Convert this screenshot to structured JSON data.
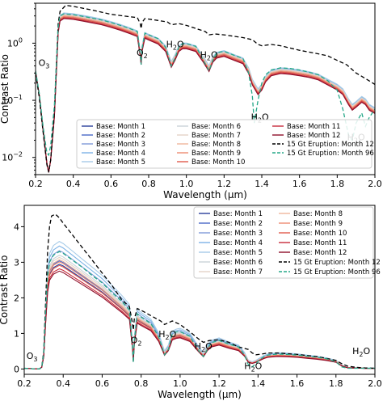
{
  "chart_data": [
    {
      "type": "line",
      "x_scale": "linear",
      "y_scale": "log",
      "xlim": [
        0.2,
        2.0
      ],
      "ylim": [
        0.005,
        5
      ],
      "xlabel": "Wavelength (μm)",
      "ylabel": "Contrast Ratio",
      "x_ticks": [
        {
          "v": 0.2,
          "label": "0.2"
        },
        {
          "v": 0.4,
          "label": "0.4"
        },
        {
          "v": 0.6,
          "label": "0.6"
        },
        {
          "v": 0.8,
          "label": "0.8"
        },
        {
          "v": 1.0,
          "label": "1.0"
        },
        {
          "v": 1.2,
          "label": "1.2"
        },
        {
          "v": 1.4,
          "label": "1.4"
        },
        {
          "v": 1.6,
          "label": "1.6"
        },
        {
          "v": 1.8,
          "label": "1.8"
        },
        {
          "v": 2.0,
          "label": "2.0"
        }
      ],
      "y_ticks": [
        {
          "v": 0.01,
          "label": "10",
          "sup": "−2"
        },
        {
          "v": 0.1,
          "label": "10",
          "sup": "−1"
        },
        {
          "v": 1,
          "label": "10",
          "sup": "0"
        }
      ],
      "legend_position": "lower-center",
      "legend_columns": 3,
      "annotations": [
        {
          "text": "O",
          "sub": "3",
          "x": 0.245,
          "y": 0.4
        },
        {
          "text": "O",
          "sub": "2",
          "x": 0.765,
          "y": 0.6
        },
        {
          "text": "H",
          "sub": "2",
          "tail": "O",
          "x": 0.94,
          "y": 0.85
        },
        {
          "text": "H",
          "sub": "2",
          "tail": "O",
          "x": 1.12,
          "y": 0.55
        },
        {
          "text": "H",
          "sub": "2",
          "tail": "O",
          "x": 1.39,
          "y": 0.045
        },
        {
          "text": "H",
          "sub": "2",
          "tail": "O",
          "x": 1.9,
          "y": 0.02
        }
      ],
      "base_curve": {
        "x": [
          0.2,
          0.22,
          0.24,
          0.26,
          0.27,
          0.28,
          0.3,
          0.31,
          0.32,
          0.33,
          0.35,
          0.4,
          0.45,
          0.5,
          0.55,
          0.6,
          0.65,
          0.7,
          0.74,
          0.755,
          0.76,
          0.765,
          0.78,
          0.8,
          0.85,
          0.89,
          0.92,
          0.94,
          0.96,
          0.98,
          1.0,
          1.05,
          1.09,
          1.12,
          1.14,
          1.16,
          1.2,
          1.25,
          1.3,
          1.33,
          1.35,
          1.38,
          1.4,
          1.42,
          1.45,
          1.5,
          1.55,
          1.6,
          1.65,
          1.7,
          1.75,
          1.8,
          1.83,
          1.86,
          1.88,
          1.9,
          1.93,
          1.95,
          1.97,
          2.0
        ],
        "y": [
          0.32,
          0.12,
          0.03,
          0.008,
          0.0055,
          0.009,
          0.06,
          0.35,
          1.8,
          2.9,
          3.2,
          3.1,
          2.9,
          2.7,
          2.5,
          2.25,
          2.0,
          1.75,
          1.55,
          0.7,
          0.5,
          0.85,
          1.45,
          1.35,
          1.15,
          0.85,
          0.45,
          0.6,
          0.85,
          0.95,
          0.95,
          0.85,
          0.55,
          0.38,
          0.55,
          0.65,
          0.7,
          0.6,
          0.52,
          0.35,
          0.22,
          0.15,
          0.18,
          0.25,
          0.32,
          0.35,
          0.34,
          0.32,
          0.3,
          0.27,
          0.22,
          0.18,
          0.15,
          0.1,
          0.08,
          0.09,
          0.11,
          0.1,
          0.08,
          0.07
        ]
      },
      "series": [
        {
          "name": "Base: Month 1",
          "color": "#2a3f9b",
          "scale": 0.9,
          "dash": ""
        },
        {
          "name": "Base: Month 2",
          "color": "#4a68c8",
          "scale": 0.93,
          "dash": ""
        },
        {
          "name": "Base: Month 3",
          "color": "#7f9ad8",
          "scale": 0.96,
          "dash": ""
        },
        {
          "name": "Base: Month 4",
          "color": "#7db2e6",
          "scale": 1.03,
          "dash": ""
        },
        {
          "name": "Base: Month 5",
          "color": "#a6cbe8",
          "scale": 1.06,
          "dash": ""
        },
        {
          "name": "Base: Month 6",
          "color": "#c9d3d8",
          "scale": 1.0,
          "dash": ""
        },
        {
          "name": "Base: Month 7",
          "color": "#e3d3c8",
          "scale": 0.98,
          "dash": ""
        },
        {
          "name": "Base: Month 8",
          "color": "#f0b69c",
          "scale": 0.95,
          "dash": ""
        },
        {
          "name": "Base: Month 9",
          "color": "#ee8c72",
          "scale": 0.92,
          "dash": ""
        },
        {
          "name": "Base: Month 10",
          "color": "#e05a4c",
          "scale": 0.89,
          "dash": ""
        },
        {
          "name": "Base: Month 11",
          "color": "#c82a3a",
          "scale": 0.86,
          "dash": ""
        },
        {
          "name": "Base: Month 12",
          "color": "#8e0f2a",
          "scale": 0.84,
          "dash": ""
        },
        {
          "name": "15 Gt Eruption: Month 12",
          "color": "#000000",
          "dash": "5,3",
          "x": [
            0.2,
            0.22,
            0.24,
            0.26,
            0.27,
            0.28,
            0.3,
            0.31,
            0.32,
            0.33,
            0.36,
            0.4,
            0.5,
            0.6,
            0.7,
            0.74,
            0.755,
            0.76,
            0.765,
            0.78,
            0.85,
            0.9,
            0.92,
            0.94,
            0.96,
            1.0,
            1.1,
            1.12,
            1.15,
            1.2,
            1.3,
            1.35,
            1.38,
            1.4,
            1.45,
            1.5,
            1.6,
            1.7,
            1.75,
            1.8,
            1.85,
            1.9,
            1.95,
            2.0
          ],
          "y": [
            0.3,
            0.11,
            0.028,
            0.0075,
            0.0055,
            0.009,
            0.065,
            0.4,
            2.2,
            3.6,
            4.6,
            4.4,
            3.8,
            3.2,
            2.9,
            2.8,
            2.2,
            1.8,
            2.3,
            2.7,
            2.5,
            2.35,
            2.1,
            2.15,
            2.2,
            2.05,
            1.6,
            1.4,
            1.45,
            1.4,
            1.25,
            1.15,
            0.95,
            0.9,
            0.95,
            0.9,
            0.75,
            0.65,
            0.6,
            0.5,
            0.42,
            0.3,
            0.24,
            0.19
          ]
        },
        {
          "name": "15 Gt Eruption: Month 96",
          "color": "#26a889",
          "dash": "5,3",
          "x": [
            0.2,
            0.22,
            0.24,
            0.26,
            0.27,
            0.28,
            0.3,
            0.31,
            0.32,
            0.33,
            0.35,
            0.4,
            0.45,
            0.5,
            0.55,
            0.6,
            0.65,
            0.7,
            0.74,
            0.755,
            0.76,
            0.765,
            0.78,
            0.8,
            0.85,
            0.89,
            0.92,
            0.94,
            0.96,
            0.98,
            1.0,
            1.05,
            1.09,
            1.12,
            1.14,
            1.16,
            1.2,
            1.25,
            1.3,
            1.33,
            1.35,
            1.36,
            1.38,
            1.4,
            1.42,
            1.45,
            1.5,
            1.55,
            1.6,
            1.65,
            1.7,
            1.75,
            1.8,
            1.83,
            1.86,
            1.88,
            1.9,
            1.93,
            1.95,
            1.97,
            2.0
          ],
          "y": [
            0.33,
            0.13,
            0.035,
            0.012,
            0.011,
            0.016,
            0.08,
            0.42,
            1.9,
            3.0,
            3.25,
            3.15,
            2.95,
            2.75,
            2.55,
            2.3,
            2.05,
            1.8,
            1.6,
            0.65,
            0.42,
            0.8,
            1.5,
            1.4,
            1.2,
            0.85,
            0.4,
            0.55,
            0.85,
            0.98,
            0.98,
            0.88,
            0.5,
            0.33,
            0.5,
            0.68,
            0.72,
            0.62,
            0.54,
            0.3,
            0.12,
            0.04,
            0.1,
            0.2,
            0.28,
            0.34,
            0.37,
            0.36,
            0.34,
            0.31,
            0.28,
            0.22,
            0.15,
            0.07,
            0.025,
            0.02,
            0.04,
            0.06,
            0.035,
            0.05,
            0.07
          ]
        }
      ]
    },
    {
      "type": "line",
      "x_scale": "linear",
      "y_scale": "linear",
      "xlim": [
        0.2,
        2.0
      ],
      "ylim": [
        -0.15,
        4.6
      ],
      "xlabel": "Wavelength (μm)",
      "ylabel": "Contrast Ratio",
      "x_ticks": [
        {
          "v": 0.2,
          "label": "0.2"
        },
        {
          "v": 0.4,
          "label": "0.4"
        },
        {
          "v": 0.6,
          "label": "0.6"
        },
        {
          "v": 0.8,
          "label": "0.8"
        },
        {
          "v": 1.0,
          "label": "1.0"
        },
        {
          "v": 1.2,
          "label": "1.2"
        },
        {
          "v": 1.4,
          "label": "1.4"
        },
        {
          "v": 1.6,
          "label": "1.6"
        },
        {
          "v": 1.8,
          "label": "1.8"
        },
        {
          "v": 2.0,
          "label": "2.0"
        }
      ],
      "y_ticks": [
        {
          "v": 0,
          "label": "0"
        },
        {
          "v": 1,
          "label": "1"
        },
        {
          "v": 2,
          "label": "2"
        },
        {
          "v": 3,
          "label": "3"
        },
        {
          "v": 4,
          "label": "4"
        }
      ],
      "legend_position": "upper-right",
      "legend_columns": 2,
      "annotations": [
        {
          "text": "O",
          "sub": "3",
          "x": 0.24,
          "y": 0.28
        },
        {
          "text": "O",
          "sub": "2",
          "x": 0.775,
          "y": 0.72
        },
        {
          "text": "H",
          "sub": "2",
          "tail": "O",
          "x": 0.935,
          "y": 0.9
        },
        {
          "text": "H",
          "sub": "2",
          "tail": "O",
          "x": 1.12,
          "y": 0.55
        },
        {
          "text": "H",
          "sub": "2",
          "tail": "O",
          "x": 1.375,
          "y": 0.0
        },
        {
          "text": "H",
          "sub": "2",
          "tail": "O",
          "x": 1.93,
          "y": 0.42
        }
      ],
      "base_curve": {
        "x": [
          0.2,
          0.24,
          0.27,
          0.28,
          0.29,
          0.3,
          0.31,
          0.32,
          0.33,
          0.35,
          0.38,
          0.4,
          0.45,
          0.5,
          0.55,
          0.6,
          0.65,
          0.7,
          0.74,
          0.755,
          0.76,
          0.765,
          0.78,
          0.8,
          0.85,
          0.89,
          0.92,
          0.94,
          0.96,
          0.98,
          1.0,
          1.05,
          1.09,
          1.12,
          1.14,
          1.16,
          1.2,
          1.25,
          1.3,
          1.33,
          1.35,
          1.37,
          1.39,
          1.41,
          1.43,
          1.45,
          1.5,
          1.55,
          1.6,
          1.65,
          1.7,
          1.75,
          1.8,
          1.83,
          1.86,
          1.9,
          1.95,
          2.0
        ],
        "y": [
          0.02,
          0.01,
          0.005,
          0.01,
          0.05,
          0.4,
          1.5,
          2.5,
          2.9,
          3.1,
          3.2,
          3.15,
          2.95,
          2.75,
          2.55,
          2.35,
          2.1,
          1.85,
          1.62,
          0.7,
          0.25,
          0.8,
          1.5,
          1.42,
          1.25,
          0.9,
          0.45,
          0.6,
          0.95,
          1.0,
          1.02,
          0.9,
          0.6,
          0.4,
          0.6,
          0.72,
          0.78,
          0.68,
          0.6,
          0.42,
          0.22,
          0.18,
          0.22,
          0.28,
          0.34,
          0.38,
          0.41,
          0.4,
          0.38,
          0.35,
          0.32,
          0.28,
          0.22,
          0.1,
          0.04,
          0.03,
          0.02,
          0.02
        ]
      },
      "series": [
        {
          "name": "Base: Month 1",
          "color": "#2a3f9b",
          "scale": 0.92,
          "dash": ""
        },
        {
          "name": "Base: Month 2",
          "color": "#4a68c8",
          "scale": 0.95,
          "dash": ""
        },
        {
          "name": "Base: Month 3",
          "color": "#7f9ad8",
          "scale": 1.04,
          "dash": ""
        },
        {
          "name": "Base: Month 4",
          "color": "#7db2e6",
          "scale": 1.08,
          "dash": ""
        },
        {
          "name": "Base: Month 5",
          "color": "#a6cbe8",
          "scale": 1.12,
          "dash": ""
        },
        {
          "name": "Base: Month 6",
          "color": "#c9d3d8",
          "scale": 1.0,
          "dash": ""
        },
        {
          "name": "Base: Month 7",
          "color": "#e3d3c8",
          "scale": 0.98,
          "dash": ""
        },
        {
          "name": "Base: Month 8",
          "color": "#f0b69c",
          "scale": 0.96,
          "dash": ""
        },
        {
          "name": "Base: Month 9",
          "color": "#ee8c72",
          "scale": 0.94,
          "dash": ""
        },
        {
          "name": "Base: Month 10",
          "color": "#e05a4c",
          "scale": 0.91,
          "dash": ""
        },
        {
          "name": "Base: Month 11",
          "color": "#c82a3a",
          "scale": 0.88,
          "dash": ""
        },
        {
          "name": "Base: Month 12",
          "color": "#8e0f2a",
          "scale": 0.86,
          "dash": ""
        },
        {
          "name": "15 Gt Eruption: Month 12",
          "color": "#000000",
          "dash": "5,3",
          "x": [
            0.2,
            0.24,
            0.27,
            0.28,
            0.29,
            0.3,
            0.31,
            0.32,
            0.33,
            0.34,
            0.36,
            0.38,
            0.4,
            0.45,
            0.5,
            0.55,
            0.6,
            0.65,
            0.7,
            0.74,
            0.755,
            0.76,
            0.765,
            0.78,
            0.8,
            0.85,
            0.9,
            0.92,
            0.94,
            0.96,
            1.0,
            1.05,
            1.1,
            1.12,
            1.15,
            1.2,
            1.25,
            1.3,
            1.35,
            1.37,
            1.39,
            1.42,
            1.45,
            1.5,
            1.55,
            1.6,
            1.65,
            1.7,
            1.75,
            1.8,
            1.83,
            1.86,
            1.9,
            1.95,
            2.0
          ],
          "y": [
            0.02,
            0.01,
            0.005,
            0.01,
            0.06,
            0.5,
            1.9,
            3.3,
            4.0,
            4.3,
            4.35,
            4.25,
            4.1,
            3.75,
            3.4,
            3.05,
            2.7,
            2.35,
            1.95,
            1.75,
            1.3,
            1.1,
            1.4,
            1.7,
            1.65,
            1.5,
            1.35,
            1.25,
            1.3,
            1.35,
            1.25,
            1.05,
            0.82,
            0.75,
            0.8,
            0.82,
            0.75,
            0.62,
            0.55,
            0.45,
            0.4,
            0.42,
            0.45,
            0.45,
            0.43,
            0.41,
            0.38,
            0.35,
            0.3,
            0.24,
            0.15,
            0.08,
            0.05,
            0.03,
            0.02
          ]
        },
        {
          "name": "15 Gt Eruption: Month 96",
          "color": "#26a889",
          "dash": "5,3",
          "x": [
            0.2,
            0.24,
            0.27,
            0.28,
            0.29,
            0.3,
            0.31,
            0.32,
            0.33,
            0.35,
            0.38,
            0.4,
            0.45,
            0.5,
            0.55,
            0.6,
            0.65,
            0.7,
            0.74,
            0.755,
            0.76,
            0.765,
            0.78,
            0.8,
            0.85,
            0.89,
            0.92,
            0.94,
            0.96,
            0.98,
            1.0,
            1.05,
            1.09,
            1.12,
            1.14,
            1.16,
            1.2,
            1.25,
            1.3,
            1.33,
            1.35,
            1.37,
            1.39,
            1.41,
            1.43,
            1.45,
            1.5,
            1.55,
            1.6,
            1.65,
            1.7,
            1.75,
            1.8,
            1.83,
            1.86,
            1.9,
            1.95,
            2.0
          ],
          "y": [
            0.02,
            0.01,
            0.005,
            0.01,
            0.05,
            0.45,
            1.6,
            2.6,
            3.0,
            3.2,
            3.3,
            3.25,
            3.05,
            2.85,
            2.62,
            2.42,
            2.15,
            1.9,
            1.66,
            0.65,
            0.18,
            0.75,
            1.55,
            1.46,
            1.28,
            0.9,
            0.4,
            0.55,
            0.98,
            1.04,
            1.05,
            0.92,
            0.55,
            0.35,
            0.55,
            0.74,
            0.8,
            0.7,
            0.62,
            0.4,
            0.12,
            0.06,
            0.16,
            0.27,
            0.34,
            0.39,
            0.42,
            0.41,
            0.39,
            0.36,
            0.33,
            0.29,
            0.2,
            0.06,
            0.02,
            0.02,
            0.02,
            0.02
          ]
        }
      ]
    }
  ]
}
